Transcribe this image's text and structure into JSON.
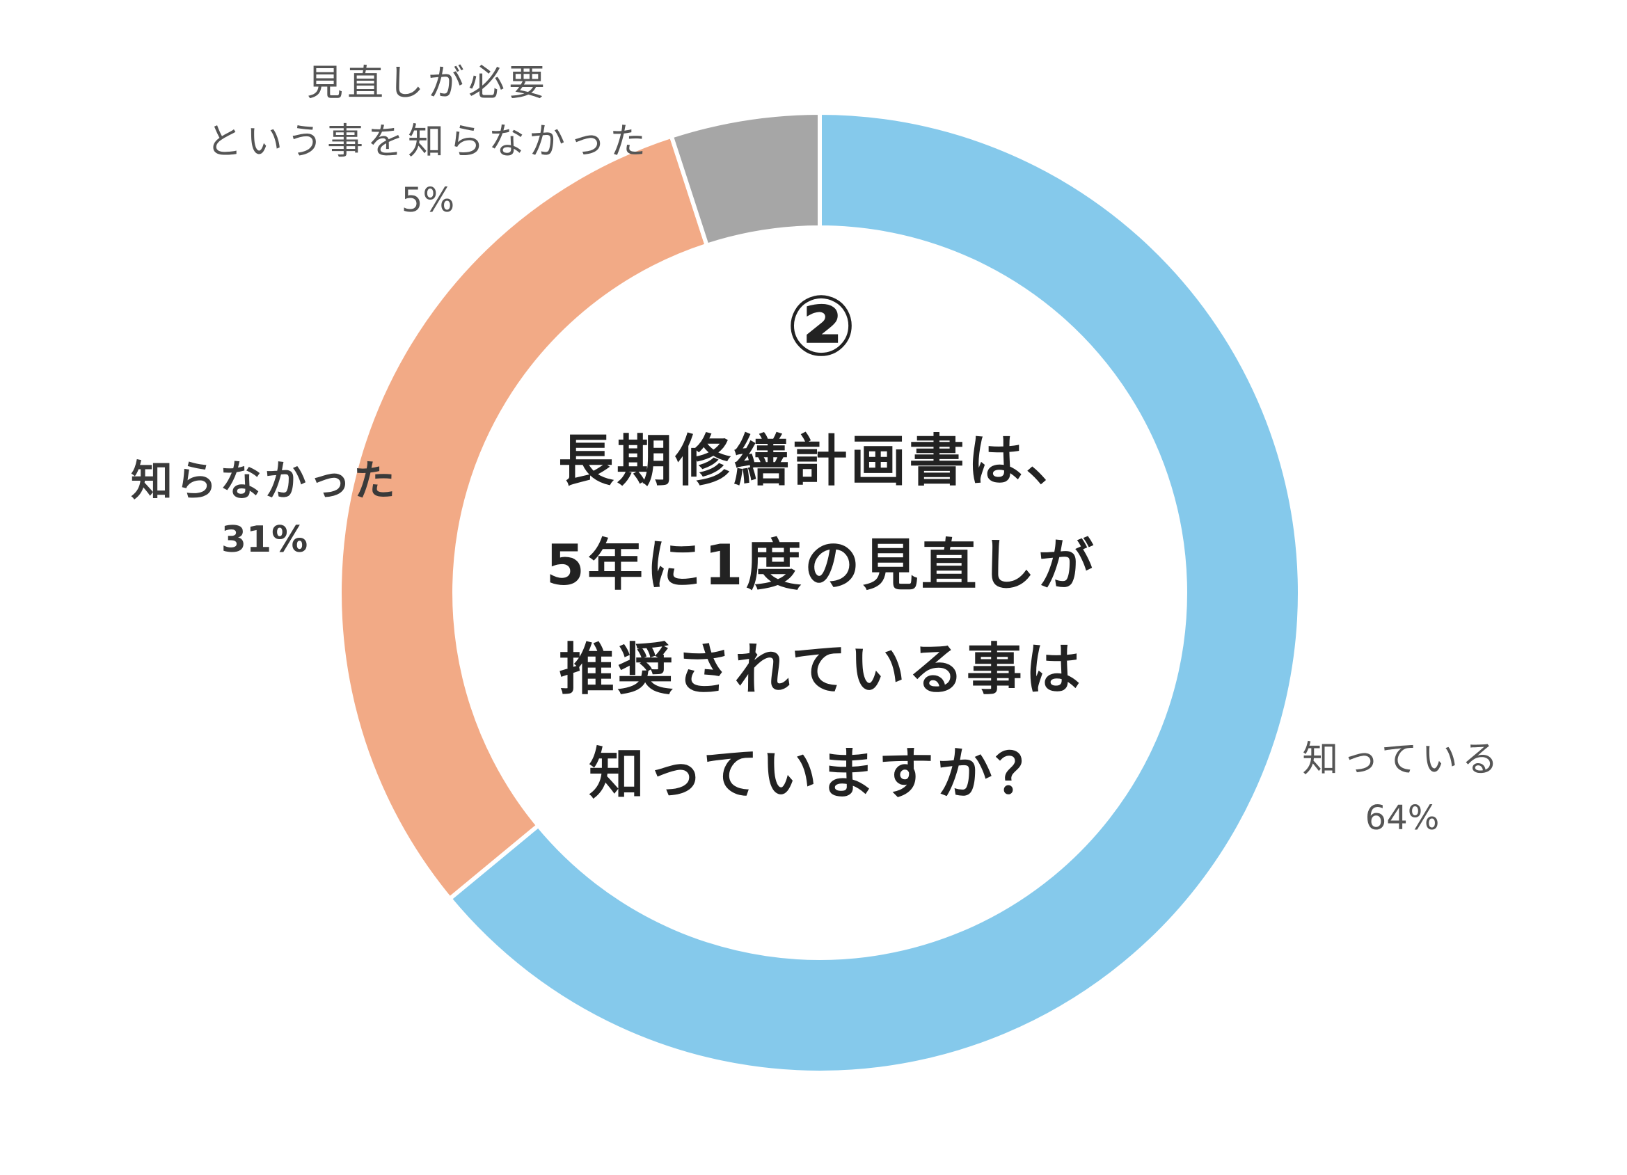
{
  "chart_data": {
    "type": "pie",
    "donut": true,
    "categories": [
      "知っている",
      "知らなかった",
      "見直しが必要\nという事を知らなかった"
    ],
    "values": [
      64,
      31,
      5
    ],
    "value_labels": [
      "64%",
      "31%",
      "5%"
    ],
    "colors": [
      "#85C9EB",
      "#F2AA86",
      "#A6A6A6"
    ],
    "center_text": {
      "mark": "②",
      "lines": [
        "長期修繕計画書は、",
        "5年に1度の見直しが",
        "推奨されている事は",
        "知っていますか？"
      ]
    },
    "labels": {
      "known": {
        "name": "知っている",
        "pct": "64%"
      },
      "unknown": {
        "name": "知らなかった",
        "pct": "31%"
      },
      "review": {
        "name_line1": "見直しが必要",
        "name_line2": "という事を知らなかった",
        "pct": "5%"
      }
    },
    "legend": "none"
  }
}
